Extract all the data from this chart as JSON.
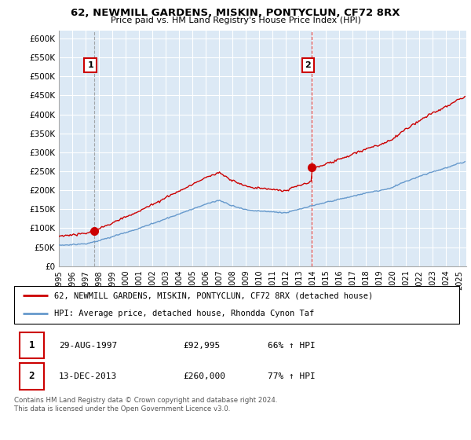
{
  "title": "62, NEWMILL GARDENS, MISKIN, PONTYCLUN, CF72 8RX",
  "subtitle": "Price paid vs. HM Land Registry's House Price Index (HPI)",
  "ylabel_ticks": [
    "£0",
    "£50K",
    "£100K",
    "£150K",
    "£200K",
    "£250K",
    "£300K",
    "£350K",
    "£400K",
    "£450K",
    "£500K",
    "£550K",
    "£600K"
  ],
  "ytick_vals": [
    0,
    50000,
    100000,
    150000,
    200000,
    250000,
    300000,
    350000,
    400000,
    450000,
    500000,
    550000,
    600000
  ],
  "ylim": [
    0,
    620000
  ],
  "xlim_start": 1995.0,
  "xlim_end": 2025.5,
  "xtick_labels": [
    "1995",
    "1996",
    "1997",
    "1998",
    "1999",
    "2000",
    "2001",
    "2002",
    "2003",
    "2004",
    "2005",
    "2006",
    "2007",
    "2008",
    "2009",
    "2010",
    "2011",
    "2012",
    "2013",
    "2014",
    "2015",
    "2016",
    "2017",
    "2018",
    "2019",
    "2020",
    "2021",
    "2022",
    "2023",
    "2024",
    "2025"
  ],
  "xtick_vals": [
    1995,
    1996,
    1997,
    1998,
    1999,
    2000,
    2001,
    2002,
    2003,
    2004,
    2005,
    2006,
    2007,
    2008,
    2009,
    2010,
    2011,
    2012,
    2013,
    2014,
    2015,
    2016,
    2017,
    2018,
    2019,
    2020,
    2021,
    2022,
    2023,
    2024,
    2025
  ],
  "red_color": "#cc0000",
  "blue_color": "#6699cc",
  "plot_bg_color": "#dce9f5",
  "point1_x": 1997.66,
  "point1_y": 92995,
  "point2_x": 2013.95,
  "point2_y": 260000,
  "point1_label": "1",
  "point2_label": "2",
  "legend_line1": "62, NEWMILL GARDENS, MISKIN, PONTYCLUN, CF72 8RX (detached house)",
  "legend_line2": "HPI: Average price, detached house, Rhondda Cynon Taf",
  "table_row1": [
    "1",
    "29-AUG-1997",
    "£92,995",
    "66% ↑ HPI"
  ],
  "table_row2": [
    "2",
    "13-DEC-2013",
    "£260,000",
    "77% ↑ HPI"
  ],
  "footnote": "Contains HM Land Registry data © Crown copyright and database right 2024.\nThis data is licensed under the Open Government Licence v3.0.",
  "background_color": "#ffffff",
  "grid_color": "#ffffff"
}
